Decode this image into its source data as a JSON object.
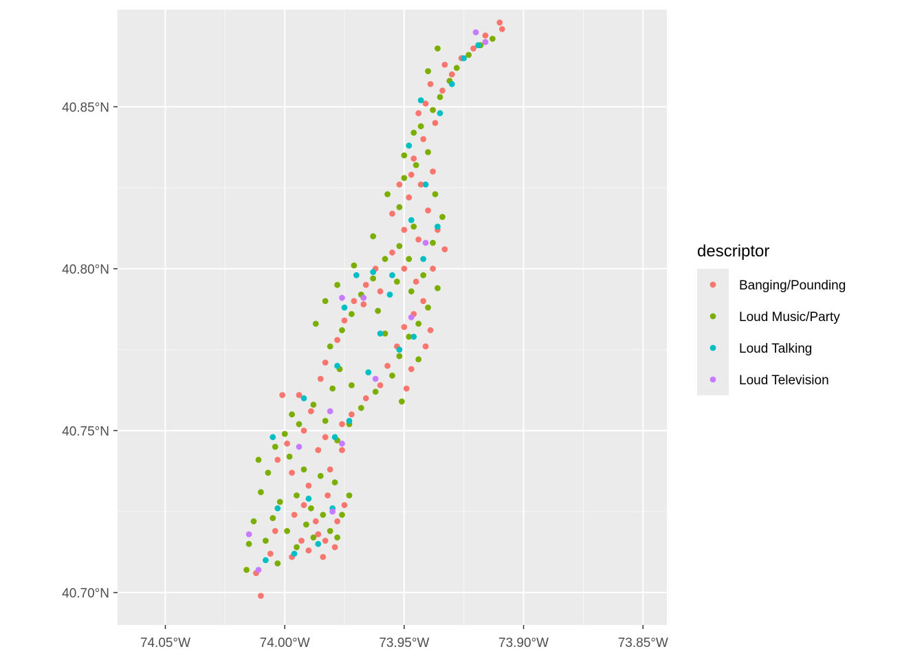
{
  "chart_data": {
    "type": "scatter",
    "title": "",
    "xlabel": "",
    "ylabel": "",
    "xlim": [
      -74.07,
      -73.84
    ],
    "ylim": [
      40.69,
      40.88
    ],
    "grid": true,
    "x_ticks": [
      {
        "value": -74.05,
        "label": "74.05°W"
      },
      {
        "value": -74.0,
        "label": "74.00°W"
      },
      {
        "value": -73.95,
        "label": "73.95°W"
      },
      {
        "value": -73.9,
        "label": "73.90°W"
      },
      {
        "value": -73.85,
        "label": "73.85°W"
      }
    ],
    "y_ticks": [
      {
        "value": 40.7,
        "label": "40.70°N"
      },
      {
        "value": 40.75,
        "label": "40.75°N"
      },
      {
        "value": 40.8,
        "label": "40.80°N"
      },
      {
        "value": 40.85,
        "label": "40.85°N"
      }
    ],
    "legend": {
      "title": "descriptor",
      "position": "right",
      "entries": [
        {
          "name": "Banging/Pounding",
          "color": "#F8766D"
        },
        {
          "name": "Loud Music/Party",
          "color": "#7CAE00"
        },
        {
          "name": "Loud Talking",
          "color": "#00BFC4"
        },
        {
          "name": "Loud Television",
          "color": "#C77CFF"
        }
      ]
    },
    "series": [
      {
        "name": "Banging/Pounding",
        "points": [
          [
            -74.01,
            40.699
          ],
          [
            -74.012,
            40.706
          ],
          [
            -74.006,
            40.712
          ],
          [
            -73.997,
            40.711
          ],
          [
            -73.99,
            40.713
          ],
          [
            -73.983,
            40.716
          ],
          [
            -73.987,
            40.722
          ],
          [
            -73.978,
            40.722
          ],
          [
            -73.975,
            40.727
          ],
          [
            -73.982,
            40.73
          ],
          [
            -73.99,
            40.733
          ],
          [
            -73.997,
            40.737
          ],
          [
            -74.003,
            40.741
          ],
          [
            -73.999,
            40.746
          ],
          [
            -73.992,
            40.75
          ],
          [
            -73.986,
            40.744
          ],
          [
            -73.981,
            40.738
          ],
          [
            -73.976,
            40.744
          ],
          [
            -73.989,
            40.756
          ],
          [
            -73.994,
            40.761
          ],
          [
            -73.985,
            40.766
          ],
          [
            -73.983,
            40.771
          ],
          [
            -73.978,
            40.778
          ],
          [
            -73.975,
            40.784
          ],
          [
            -73.971,
            40.79
          ],
          [
            -73.966,
            40.795
          ],
          [
            -73.962,
            40.8
          ],
          [
            -73.955,
            40.805
          ],
          [
            -73.95,
            40.8
          ],
          [
            -73.945,
            40.796
          ],
          [
            -73.938,
            40.8
          ],
          [
            -73.942,
            40.79
          ],
          [
            -73.946,
            40.786
          ],
          [
            -73.95,
            40.782
          ],
          [
            -73.953,
            40.776
          ],
          [
            -73.957,
            40.77
          ],
          [
            -73.96,
            40.764
          ],
          [
            -73.966,
            40.76
          ],
          [
            -73.972,
            40.755
          ],
          [
            -73.976,
            40.752
          ],
          [
            -73.983,
            40.748
          ],
          [
            -73.949,
            40.763
          ],
          [
            -73.947,
            40.769
          ],
          [
            -73.941,
            40.776
          ],
          [
            -73.939,
            40.781
          ],
          [
            -73.944,
            40.809
          ],
          [
            -73.95,
            40.812
          ],
          [
            -73.955,
            40.817
          ],
          [
            -73.948,
            40.822
          ],
          [
            -73.943,
            40.826
          ],
          [
            -73.938,
            40.83
          ],
          [
            -73.946,
            40.834
          ],
          [
            -73.942,
            40.84
          ],
          [
            -73.937,
            40.845
          ],
          [
            -73.941,
            40.851
          ],
          [
            -73.934,
            40.855
          ],
          [
            -73.93,
            40.86
          ],
          [
            -73.926,
            40.865
          ],
          [
            -73.921,
            40.868
          ],
          [
            -73.916,
            40.872
          ],
          [
            -73.91,
            40.876
          ],
          [
            -73.909,
            40.874
          ],
          [
            -73.944,
            40.848
          ],
          [
            -73.939,
            40.857
          ],
          [
            -73.933,
            40.863
          ],
          [
            -73.952,
            40.826
          ],
          [
            -73.947,
            40.829
          ],
          [
            -73.94,
            40.818
          ],
          [
            -73.936,
            40.812
          ],
          [
            -73.933,
            40.806
          ],
          [
            -73.96,
            40.793
          ],
          [
            -73.967,
            40.789
          ],
          [
            -74.001,
            40.761
          ],
          [
            -73.992,
            40.727
          ],
          [
            -73.986,
            40.718
          ],
          [
            -73.979,
            40.714
          ],
          [
            -74.004,
            40.719
          ],
          [
            -73.996,
            40.724
          ],
          [
            -73.993,
            40.716
          ],
          [
            -73.984,
            40.711
          ]
        ]
      },
      {
        "name": "Loud Music/Party",
        "points": [
          [
            -74.016,
            40.707
          ],
          [
            -74.015,
            40.715
          ],
          [
            -74.008,
            40.716
          ],
          [
            -74.003,
            40.709
          ],
          [
            -73.995,
            40.714
          ],
          [
            -73.988,
            40.717
          ],
          [
            -73.981,
            40.719
          ],
          [
            -73.976,
            40.724
          ],
          [
            -73.973,
            40.73
          ],
          [
            -73.979,
            40.734
          ],
          [
            -73.985,
            40.736
          ],
          [
            -73.992,
            40.738
          ],
          [
            -73.998,
            40.742
          ],
          [
            -74.004,
            40.745
          ],
          [
            -74.007,
            40.737
          ],
          [
            -74.01,
            40.731
          ],
          [
            -74.002,
            40.728
          ],
          [
            -73.995,
            40.73
          ],
          [
            -73.989,
            40.726
          ],
          [
            -73.994,
            40.752
          ],
          [
            -73.988,
            40.758
          ],
          [
            -73.98,
            40.763
          ],
          [
            -73.977,
            40.769
          ],
          [
            -73.981,
            40.776
          ],
          [
            -73.976,
            40.781
          ],
          [
            -73.972,
            40.786
          ],
          [
            -73.968,
            40.792
          ],
          [
            -73.963,
            40.797
          ],
          [
            -73.958,
            40.803
          ],
          [
            -73.952,
            40.807
          ],
          [
            -73.948,
            40.803
          ],
          [
            -73.942,
            40.798
          ],
          [
            -73.936,
            40.794
          ],
          [
            -73.94,
            40.788
          ],
          [
            -73.944,
            40.783
          ],
          [
            -73.948,
            40.779
          ],
          [
            -73.952,
            40.773
          ],
          [
            -73.955,
            40.767
          ],
          [
            -73.962,
            40.762
          ],
          [
            -73.968,
            40.757
          ],
          [
            -73.973,
            40.752
          ],
          [
            -73.978,
            40.747
          ],
          [
            -73.951,
            40.759
          ],
          [
            -73.944,
            40.772
          ],
          [
            -73.946,
            40.813
          ],
          [
            -73.952,
            40.819
          ],
          [
            -73.957,
            40.823
          ],
          [
            -73.95,
            40.828
          ],
          [
            -73.945,
            40.832
          ],
          [
            -73.94,
            40.836
          ],
          [
            -73.943,
            40.844
          ],
          [
            -73.938,
            40.849
          ],
          [
            -73.935,
            40.853
          ],
          [
            -73.931,
            40.858
          ],
          [
            -73.928,
            40.862
          ],
          [
            -73.923,
            40.866
          ],
          [
            -73.918,
            40.869
          ],
          [
            -73.913,
            40.871
          ],
          [
            -73.936,
            40.868
          ],
          [
            -73.94,
            40.861
          ],
          [
            -73.946,
            40.842
          ],
          [
            -73.95,
            40.835
          ],
          [
            -73.937,
            40.823
          ],
          [
            -73.934,
            40.816
          ],
          [
            -73.938,
            40.808
          ],
          [
            -73.963,
            40.81
          ],
          [
            -73.971,
            40.801
          ],
          [
            -73.978,
            40.795
          ],
          [
            -73.983,
            40.79
          ],
          [
            -73.987,
            40.783
          ],
          [
            -74.0,
            40.749
          ],
          [
            -74.005,
            40.723
          ],
          [
            -73.999,
            40.719
          ],
          [
            -73.991,
            40.721
          ],
          [
            -73.984,
            40.724
          ],
          [
            -73.978,
            40.717
          ],
          [
            -74.013,
            40.722
          ],
          [
            -74.011,
            40.741
          ],
          [
            -73.997,
            40.755
          ],
          [
            -73.983,
            40.753
          ],
          [
            -73.972,
            40.764
          ],
          [
            -73.958,
            40.78
          ],
          [
            -73.961,
            40.787
          ],
          [
            -73.947,
            40.793
          ],
          [
            -73.953,
            40.796
          ]
        ]
      },
      {
        "name": "Loud Talking",
        "points": [
          [
            -74.008,
            40.71
          ],
          [
            -73.996,
            40.712
          ],
          [
            -73.986,
            40.715
          ],
          [
            -73.98,
            40.726
          ],
          [
            -73.99,
            40.729
          ],
          [
            -74.003,
            40.726
          ],
          [
            -74.005,
            40.748
          ],
          [
            -73.992,
            40.76
          ],
          [
            -73.979,
            40.748
          ],
          [
            -73.973,
            40.753
          ],
          [
            -73.978,
            40.77
          ],
          [
            -73.965,
            40.768
          ],
          [
            -73.96,
            40.78
          ],
          [
            -73.952,
            40.775
          ],
          [
            -73.946,
            40.779
          ],
          [
            -73.956,
            40.792
          ],
          [
            -73.963,
            40.799
          ],
          [
            -73.955,
            40.798
          ],
          [
            -73.942,
            40.803
          ],
          [
            -73.947,
            40.815
          ],
          [
            -73.936,
            40.813
          ],
          [
            -73.941,
            40.826
          ],
          [
            -73.948,
            40.838
          ],
          [
            -73.943,
            40.852
          ],
          [
            -73.935,
            40.848
          ],
          [
            -73.93,
            40.857
          ],
          [
            -73.925,
            40.865
          ],
          [
            -73.919,
            40.869
          ],
          [
            -73.975,
            40.788
          ],
          [
            -73.97,
            40.798
          ]
        ]
      },
      {
        "name": "Loud Television",
        "points": [
          [
            -74.015,
            40.718
          ],
          [
            -74.011,
            40.707
          ],
          [
            -73.994,
            40.745
          ],
          [
            -73.98,
            40.725
          ],
          [
            -73.976,
            40.746
          ],
          [
            -73.962,
            40.766
          ],
          [
            -73.976,
            40.791
          ],
          [
            -73.967,
            40.791
          ],
          [
            -73.947,
            40.785
          ],
          [
            -73.941,
            40.808
          ],
          [
            -73.92,
            40.873
          ],
          [
            -73.916,
            40.87
          ],
          [
            -73.981,
            40.756
          ]
        ]
      }
    ]
  }
}
